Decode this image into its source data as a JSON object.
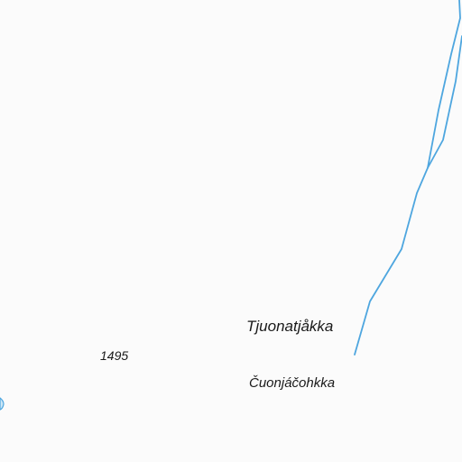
{
  "map": {
    "colors": {
      "background": "#fbfbfb",
      "water": "#4ea6df",
      "text": "#1a1a1a"
    },
    "labels": {
      "peak_name": "Tjuonatjåkka",
      "mountain_name": "Čuonjáčohkka",
      "elevation": "1495"
    }
  }
}
